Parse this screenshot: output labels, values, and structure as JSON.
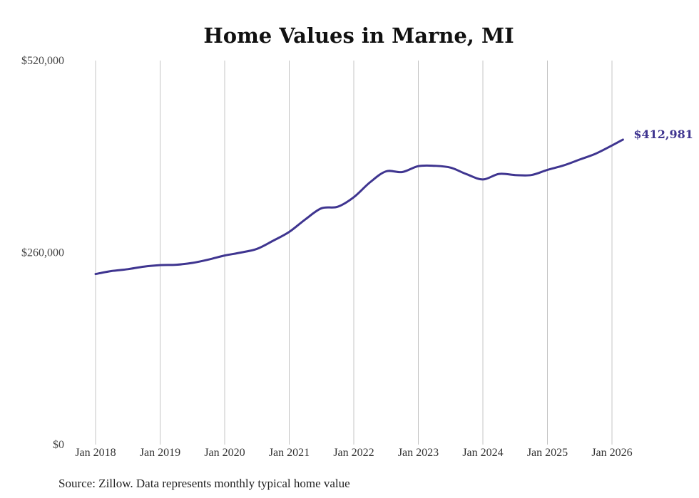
{
  "chart_data": {
    "type": "line",
    "title": "Home Values in Marne, MI",
    "xlabel": "",
    "ylabel": "",
    "ylim": [
      0,
      520000
    ],
    "y_ticks": [
      {
        "value": 0,
        "label": "$0"
      },
      {
        "value": 260000,
        "label": "$260,000"
      },
      {
        "value": 520000,
        "label": "$520,000"
      }
    ],
    "x_ticks": [
      {
        "year": 2018,
        "label": "Jan 2018"
      },
      {
        "year": 2019,
        "label": "Jan 2019"
      },
      {
        "year": 2020,
        "label": "Jan 2020"
      },
      {
        "year": 2021,
        "label": "Jan 2021"
      },
      {
        "year": 2022,
        "label": "Jan 2022"
      },
      {
        "year": 2023,
        "label": "Jan 2023"
      },
      {
        "year": 2024,
        "label": "Jan 2024"
      },
      {
        "year": 2025,
        "label": "Jan 2025"
      },
      {
        "year": 2026,
        "label": "Jan 2026"
      }
    ],
    "grid": "vertical",
    "series": [
      {
        "name": "Typical home value",
        "color": "#3f3590",
        "points": [
          [
            2018.0,
            231000
          ],
          [
            2018.25,
            235000
          ],
          [
            2018.5,
            237500
          ],
          [
            2018.75,
            241000
          ],
          [
            2019.0,
            243000
          ],
          [
            2019.25,
            243500
          ],
          [
            2019.5,
            246000
          ],
          [
            2019.75,
            250500
          ],
          [
            2020.0,
            256000
          ],
          [
            2020.25,
            260000
          ],
          [
            2020.5,
            265000
          ],
          [
            2020.75,
            276000
          ],
          [
            2021.0,
            288000
          ],
          [
            2021.25,
            305000
          ],
          [
            2021.5,
            320000
          ],
          [
            2021.75,
            322000
          ],
          [
            2022.0,
            335000
          ],
          [
            2022.25,
            355000
          ],
          [
            2022.5,
            370000
          ],
          [
            2022.75,
            369000
          ],
          [
            2023.0,
            377000
          ],
          [
            2023.25,
            377500
          ],
          [
            2023.5,
            375000
          ],
          [
            2023.75,
            366000
          ],
          [
            2024.0,
            359000
          ],
          [
            2024.25,
            366500
          ],
          [
            2024.5,
            365000
          ],
          [
            2024.75,
            365000
          ],
          [
            2025.0,
            372000
          ],
          [
            2025.25,
            378000
          ],
          [
            2025.5,
            386000
          ],
          [
            2025.75,
            394000
          ],
          [
            2026.0,
            405000
          ],
          [
            2026.17,
            412981
          ]
        ]
      }
    ],
    "end_label": "$412,981",
    "source": "Source: Zillow. Data represents monthly typical home value"
  }
}
